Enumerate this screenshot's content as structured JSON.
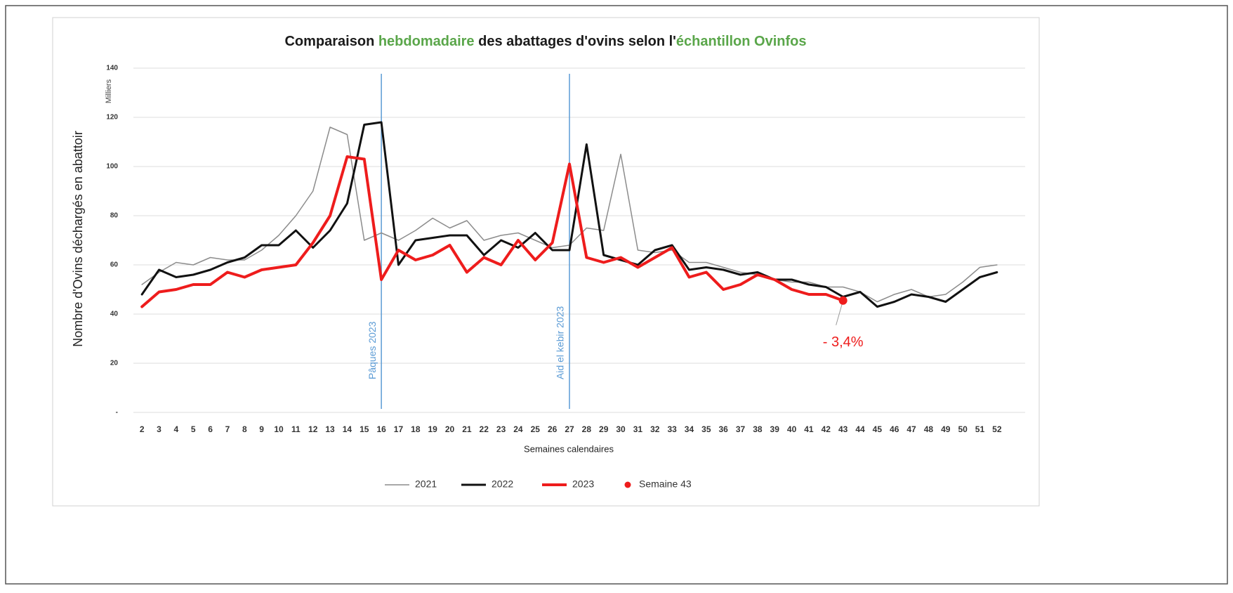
{
  "chart_data": {
    "type": "line",
    "title_parts": [
      {
        "text": "Comparaison ",
        "color": "#1a1a1a"
      },
      {
        "text": "hebdomadaire",
        "color": "#5aa64a"
      },
      {
        "text": " des abattages d'ovins selon l'",
        "color": "#1a1a1a"
      },
      {
        "text": "échantillon Ovinfos",
        "color": "#5aa64a"
      }
    ],
    "y_unit": "Milliers",
    "y_label": "Nombre d'Ovins déchargés en abattoir",
    "x_label": "Semaines calendaires",
    "x": [
      2,
      3,
      4,
      5,
      6,
      7,
      8,
      9,
      10,
      11,
      12,
      13,
      14,
      15,
      16,
      17,
      18,
      19,
      20,
      21,
      22,
      23,
      24,
      25,
      26,
      27,
      28,
      29,
      30,
      31,
      32,
      33,
      34,
      35,
      36,
      37,
      38,
      39,
      40,
      41,
      42,
      43,
      44,
      45,
      46,
      47,
      48,
      49,
      50,
      51,
      52
    ],
    "xticks": [
      2,
      3,
      4,
      5,
      6,
      7,
      8,
      9,
      10,
      11,
      12,
      13,
      14,
      15,
      16,
      17,
      18,
      19,
      20,
      21,
      22,
      23,
      24,
      25,
      26,
      27,
      28,
      29,
      30,
      31,
      32,
      33,
      34,
      35,
      36,
      37,
      38,
      39,
      40,
      41,
      42,
      43,
      44,
      45,
      46,
      47,
      48,
      49,
      50,
      51,
      52
    ],
    "xlim": [
      1.5,
      52.5
    ],
    "ylim": [
      0,
      140
    ],
    "yticks": [
      {
        "value": 0,
        "label": "-"
      },
      20,
      40,
      60,
      80,
      100,
      120,
      140
    ],
    "grid": true,
    "series": [
      {
        "name": "2021",
        "color": "#8c8c8c",
        "width": 1.5,
        "values": [
          52,
          57,
          61,
          60,
          63,
          62,
          62,
          66,
          72,
          80,
          90,
          116,
          113,
          70,
          73,
          70,
          74,
          79,
          75,
          78,
          70,
          72,
          73,
          70,
          67,
          68,
          75,
          74,
          105,
          66,
          65,
          66,
          61,
          61,
          59,
          57,
          56,
          54,
          53,
          53,
          51,
          51,
          49,
          45,
          48,
          50,
          47,
          48,
          53,
          59,
          60
        ]
      },
      {
        "name": "2022",
        "color": "#111111",
        "width": 3,
        "values": [
          48,
          58,
          55,
          56,
          58,
          61,
          63,
          68,
          68,
          74,
          67,
          74,
          85,
          117,
          118,
          60,
          70,
          71,
          72,
          72,
          64,
          70,
          67,
          73,
          66,
          66,
          109,
          64,
          62,
          60,
          66,
          68,
          58,
          59,
          58,
          56,
          57,
          54,
          54,
          52,
          51,
          47,
          49,
          43,
          45,
          48,
          47,
          45,
          50,
          55,
          57
        ]
      },
      {
        "name": "2023",
        "color": "#ee1c1c",
        "width": 4,
        "values": [
          43,
          49,
          50,
          52,
          52,
          57,
          55,
          58,
          59,
          60,
          69,
          80,
          104,
          103,
          54,
          66,
          62,
          64,
          68,
          57,
          63,
          60,
          70,
          62,
          69,
          101,
          63,
          61,
          63,
          59,
          63,
          67,
          55,
          57,
          50,
          52,
          56,
          54,
          50,
          48,
          48,
          45.5,
          null,
          null,
          null,
          null,
          null,
          null,
          null,
          null,
          null
        ]
      }
    ],
    "marker": {
      "name": "Semaine 43",
      "x": 43,
      "value": 45.5,
      "color": "#ee1c1c"
    },
    "annotation": {
      "text": "- 3,4%",
      "color": "#ee1c1c"
    },
    "events": [
      {
        "x": 16,
        "label": "Pâques 2023",
        "color": "#5b9bd5"
      },
      {
        "x": 27,
        "label": "Aid el kebir 2023",
        "color": "#5b9bd5"
      }
    ]
  }
}
